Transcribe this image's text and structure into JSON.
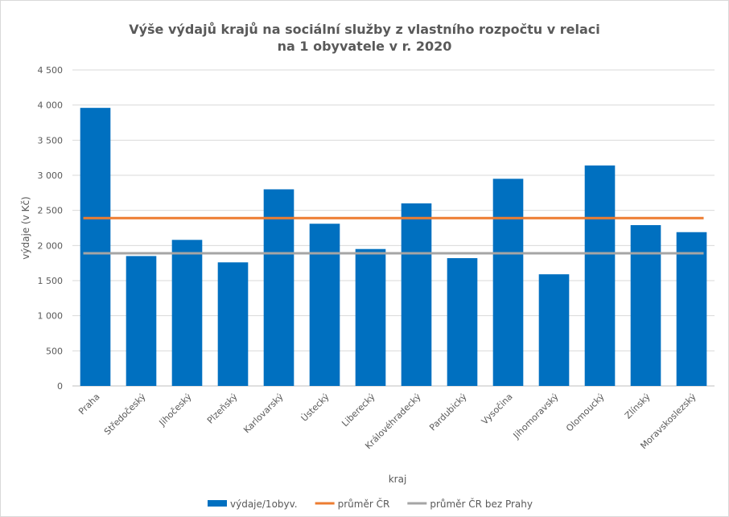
{
  "chart_data": {
    "type": "bar",
    "title_lines": [
      "Výše výdajů krajů na sociální služby z vlastního rozpočtu v relaci",
      "na 1 obyvatele v r. 2020"
    ],
    "xlabel": "kraj",
    "ylabel": "výdaje (v Kč)",
    "ylim": [
      0,
      4500
    ],
    "yticks": [
      0,
      500,
      1000,
      1500,
      2000,
      2500,
      3000,
      3500,
      4000,
      4500
    ],
    "ytick_labels": [
      "0",
      "500",
      "1 000",
      "1 500",
      "2 000",
      "2 500",
      "3 000",
      "3 500",
      "4 000",
      "4 500"
    ],
    "categories": [
      "Praha",
      "Středočeský",
      "Jihočeský",
      "Plzeňský",
      "Karlovarský",
      "Ústecký",
      "Liberecký",
      "Královéhradecký",
      "Pardubický",
      "Vysočina",
      "Jihomoravský",
      "Olomoucký",
      "Zlínský",
      "Moravskoslezský"
    ],
    "series": [
      {
        "name": "výdaje/1obyv.",
        "kind": "bar",
        "color": "#0070c0",
        "values": [
          3960,
          1850,
          2080,
          1760,
          2800,
          2310,
          1950,
          2600,
          1820,
          2950,
          1590,
          3140,
          2290,
          2190
        ]
      },
      {
        "name": "průměr ČR",
        "kind": "line",
        "color": "#ed7d31",
        "value": 2390
      },
      {
        "name": "průměr ČR bez Prahy",
        "kind": "line",
        "color": "#a5a5a5",
        "value": 1890
      }
    ],
    "grid": true,
    "legend_position": "bottom"
  }
}
